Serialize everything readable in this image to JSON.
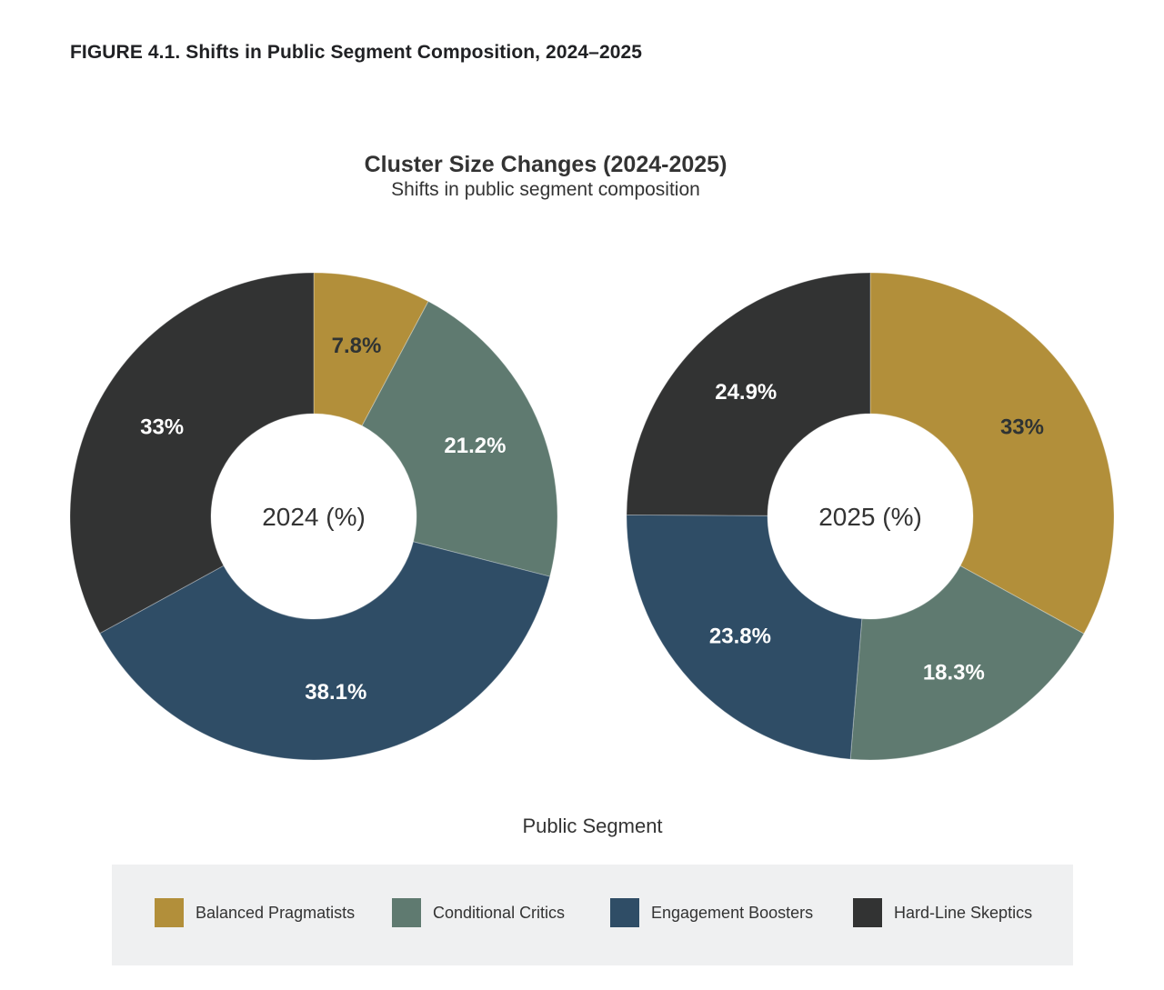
{
  "figure": {
    "label": "FIGURE 4.1.",
    "title": " Shifts in Public Segment Composition, 2024–2025"
  },
  "chart_data": {
    "type": "pie",
    "subtype": "donut",
    "title": "Cluster Size Changes (2024-2025)",
    "subtitle": "Shifts in public segment composition",
    "legend_title": "Public Segment",
    "legend_position": "bottom",
    "categories": [
      "Balanced Pragmatists",
      "Conditional Critics",
      "Engagement Boosters",
      "Hard-Line Skeptics"
    ],
    "colors": [
      "#B28F3A",
      "#5F7A70",
      "#2F4D66",
      "#323333"
    ],
    "label_colors": [
      "#2F3333",
      "#FFFFFF",
      "#FFFFFF",
      "#FFFFFF"
    ],
    "pies": [
      {
        "name": "2024",
        "center_label": "2024 (%)",
        "values": [
          7.8,
          21.2,
          38.1,
          33
        ],
        "labels": [
          "7.8%",
          "21.2%",
          "38.1%",
          "33%"
        ]
      },
      {
        "name": "2025",
        "center_label": "2025 (%)",
        "values": [
          33,
          18.3,
          23.8,
          24.9
        ],
        "labels": [
          "33%",
          "18.3%",
          "23.8%",
          "24.9%"
        ]
      }
    ]
  }
}
